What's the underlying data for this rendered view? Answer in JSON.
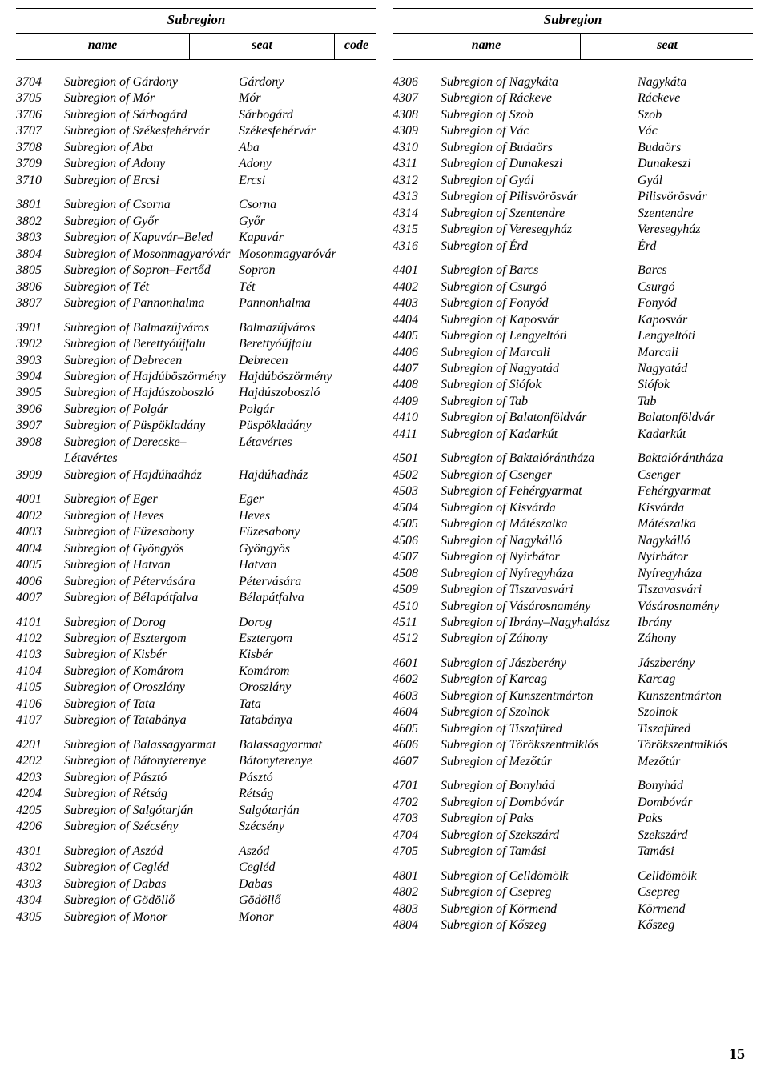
{
  "headers": {
    "subregion": "Subregion",
    "name": "name",
    "seat": "seat",
    "code": "code"
  },
  "page_number": "15",
  "left_groups": [
    [
      {
        "code": "3704",
        "name": "Subregion of Gárdony",
        "seat": "Gárdony"
      },
      {
        "code": "3705",
        "name": "Subregion of Mór",
        "seat": "Mór"
      },
      {
        "code": "3706",
        "name": "Subregion of Sárbogárd",
        "seat": "Sárbogárd"
      },
      {
        "code": "3707",
        "name": "Subregion of Székesfehérvár",
        "seat": "Székesfehérvár"
      },
      {
        "code": "3708",
        "name": "Subregion of Aba",
        "seat": "Aba"
      },
      {
        "code": "3709",
        "name": "Subregion of Adony",
        "seat": "Adony"
      },
      {
        "code": "3710",
        "name": "Subregion of Ercsi",
        "seat": "Ercsi"
      }
    ],
    [
      {
        "code": "3801",
        "name": "Subregion of Csorna",
        "seat": "Csorna"
      },
      {
        "code": "3802",
        "name": "Subregion of Győr",
        "seat": "Győr"
      },
      {
        "code": "3803",
        "name": "Subregion of Kapuvár–Beled",
        "seat": "Kapuvár"
      },
      {
        "code": "3804",
        "name": "Subregion of Mosonmagyaróvár",
        "seat": "Mosonmagyaróvár"
      },
      {
        "code": "3805",
        "name": "Subregion of Sopron–Fertőd",
        "seat": "Sopron"
      },
      {
        "code": "3806",
        "name": "Subregion of Tét",
        "seat": "Tét"
      },
      {
        "code": "3807",
        "name": "Subregion of Pannonhalma",
        "seat": "Pannonhalma"
      }
    ],
    [
      {
        "code": "3901",
        "name": "Subregion of Balmazújváros",
        "seat": "Balmazújváros"
      },
      {
        "code": "3902",
        "name": "Subregion of Berettyóújfalu",
        "seat": "Berettyóújfalu"
      },
      {
        "code": "3903",
        "name": "Subregion of Debrecen",
        "seat": "Debrecen"
      },
      {
        "code": "3904",
        "name": "Subregion of Hajdúböszörmény",
        "seat": "Hajdúböszörmény"
      },
      {
        "code": "3905",
        "name": "Subregion of Hajdúszoboszló",
        "seat": "Hajdúszoboszló"
      },
      {
        "code": "3906",
        "name": "Subregion of Polgár",
        "seat": "Polgár"
      },
      {
        "code": "3907",
        "name": "Subregion of Püspökladány",
        "seat": "Püspökladány"
      },
      {
        "code": "3908",
        "name": "Subregion of Derecske–Létavértes",
        "seat": "Létavértes"
      },
      {
        "code": "3909",
        "name": "Subregion of Hajdúhadház",
        "seat": "Hajdúhadház"
      }
    ],
    [
      {
        "code": "4001",
        "name": "Subregion of Eger",
        "seat": "Eger"
      },
      {
        "code": "4002",
        "name": "Subregion of Heves",
        "seat": "Heves"
      },
      {
        "code": "4003",
        "name": "Subregion of Füzesabony",
        "seat": "Füzesabony"
      },
      {
        "code": "4004",
        "name": "Subregion of Gyöngyös",
        "seat": "Gyöngyös"
      },
      {
        "code": "4005",
        "name": "Subregion of Hatvan",
        "seat": "Hatvan"
      },
      {
        "code": "4006",
        "name": "Subregion of Pétervására",
        "seat": "Pétervására"
      },
      {
        "code": "4007",
        "name": "Subregion of Bélapátfalva",
        "seat": "Bélapátfalva"
      }
    ],
    [
      {
        "code": "4101",
        "name": "Subregion of Dorog",
        "seat": "Dorog"
      },
      {
        "code": "4102",
        "name": "Subregion of Esztergom",
        "seat": "Esztergom"
      },
      {
        "code": "4103",
        "name": "Subregion of Kisbér",
        "seat": "Kisbér"
      },
      {
        "code": "4104",
        "name": "Subregion of Komárom",
        "seat": "Komárom"
      },
      {
        "code": "4105",
        "name": "Subregion of Oroszlány",
        "seat": "Oroszlány"
      },
      {
        "code": "4106",
        "name": "Subregion of Tata",
        "seat": "Tata"
      },
      {
        "code": "4107",
        "name": "Subregion of Tatabánya",
        "seat": "Tatabánya"
      }
    ],
    [
      {
        "code": "4201",
        "name": "Subregion of Balassagyarmat",
        "seat": "Balassagyarmat"
      },
      {
        "code": "4202",
        "name": "Subregion of Bátonyterenye",
        "seat": "Bátonyterenye"
      },
      {
        "code": "4203",
        "name": "Subregion of Pásztó",
        "seat": "Pásztó"
      },
      {
        "code": "4204",
        "name": "Subregion of Rétság",
        "seat": "Rétság"
      },
      {
        "code": "4205",
        "name": "Subregion of Salgótarján",
        "seat": "Salgótarján"
      },
      {
        "code": "4206",
        "name": "Subregion of Szécsény",
        "seat": "Szécsény"
      }
    ],
    [
      {
        "code": "4301",
        "name": "Subregion of Aszód",
        "seat": "Aszód"
      },
      {
        "code": "4302",
        "name": "Subregion of Cegléd",
        "seat": "Cegléd"
      },
      {
        "code": "4303",
        "name": "Subregion of Dabas",
        "seat": "Dabas"
      },
      {
        "code": "4304",
        "name": "Subregion of Gödöllő",
        "seat": "Gödöllő"
      },
      {
        "code": "4305",
        "name": "Subregion of Monor",
        "seat": "Monor"
      }
    ]
  ],
  "right_groups": [
    [
      {
        "code": "4306",
        "name": "Subregion of Nagykáta",
        "seat": "Nagykáta"
      },
      {
        "code": "4307",
        "name": "Subregion of Ráckeve",
        "seat": "Ráckeve"
      },
      {
        "code": "4308",
        "name": "Subregion of Szob",
        "seat": "Szob"
      },
      {
        "code": "4309",
        "name": "Subregion of Vác",
        "seat": "Vác"
      },
      {
        "code": "4310",
        "name": "Subregion of Budaörs",
        "seat": "Budaörs"
      },
      {
        "code": "4311",
        "name": "Subregion of Dunakeszi",
        "seat": "Dunakeszi"
      },
      {
        "code": "4312",
        "name": "Subregion of Gyál",
        "seat": "Gyál"
      },
      {
        "code": "4313",
        "name": "Subregion of Pilisvörösvár",
        "seat": "Pilisvörösvár"
      },
      {
        "code": "4314",
        "name": "Subregion of Szentendre",
        "seat": "Szentendre"
      },
      {
        "code": "4315",
        "name": "Subregion of Veresegyház",
        "seat": "Veresegyház"
      },
      {
        "code": "4316",
        "name": "Subregion of Érd",
        "seat": "Érd"
      }
    ],
    [
      {
        "code": "4401",
        "name": "Subregion of Barcs",
        "seat": "Barcs"
      },
      {
        "code": "4402",
        "name": "Subregion of Csurgó",
        "seat": "Csurgó"
      },
      {
        "code": "4403",
        "name": "Subregion of Fonyód",
        "seat": "Fonyód"
      },
      {
        "code": "4404",
        "name": "Subregion of Kaposvár",
        "seat": "Kaposvár"
      },
      {
        "code": "4405",
        "name": "Subregion of Lengyeltóti",
        "seat": "Lengyeltóti"
      },
      {
        "code": "4406",
        "name": "Subregion of Marcali",
        "seat": "Marcali"
      },
      {
        "code": "4407",
        "name": "Subregion of Nagyatád",
        "seat": "Nagyatád"
      },
      {
        "code": "4408",
        "name": "Subregion of Siófok",
        "seat": "Siófok"
      },
      {
        "code": "4409",
        "name": "Subregion of Tab",
        "seat": "Tab"
      },
      {
        "code": "4410",
        "name": "Subregion of Balatonföldvár",
        "seat": "Balatonföldvár"
      },
      {
        "code": "4411",
        "name": "Subregion of Kadarkút",
        "seat": "Kadarkút"
      }
    ],
    [
      {
        "code": "4501",
        "name": "Subregion of Baktalórántháza",
        "seat": "Baktalórántháza"
      },
      {
        "code": "4502",
        "name": "Subregion of Csenger",
        "seat": "Csenger"
      },
      {
        "code": "4503",
        "name": "Subregion of Fehérgyarmat",
        "seat": "Fehérgyarmat"
      },
      {
        "code": "4504",
        "name": "Subregion of Kisvárda",
        "seat": "Kisvárda"
      },
      {
        "code": "4505",
        "name": "Subregion of Mátészalka",
        "seat": "Mátészalka"
      },
      {
        "code": "4506",
        "name": "Subregion of Nagykálló",
        "seat": "Nagykálló"
      },
      {
        "code": "4507",
        "name": "Subregion of Nyírbátor",
        "seat": "Nyírbátor"
      },
      {
        "code": "4508",
        "name": "Subregion of Nyíregyháza",
        "seat": "Nyíregyháza"
      },
      {
        "code": "4509",
        "name": "Subregion of Tiszavasvári",
        "seat": "Tiszavasvári"
      },
      {
        "code": "4510",
        "name": "Subregion of Vásárosnamény",
        "seat": "Vásárosnamény"
      },
      {
        "code": "4511",
        "name": "Subregion of Ibrány–Nagyhalász",
        "seat": "Ibrány"
      },
      {
        "code": "4512",
        "name": "Subregion of Záhony",
        "seat": "Záhony"
      }
    ],
    [
      {
        "code": "4601",
        "name": "Subregion of Jászberény",
        "seat": "Jászberény"
      },
      {
        "code": "4602",
        "name": "Subregion of Karcag",
        "seat": "Karcag"
      },
      {
        "code": "4603",
        "name": "Subregion of Kunszentmárton",
        "seat": "Kunszentmárton"
      },
      {
        "code": "4604",
        "name": "Subregion of Szolnok",
        "seat": "Szolnok"
      },
      {
        "code": "4605",
        "name": "Subregion of Tiszafüred",
        "seat": "Tiszafüred"
      },
      {
        "code": "4606",
        "name": "Subregion of Törökszentmiklós",
        "seat": "Törökszentmiklós"
      },
      {
        "code": "4607",
        "name": "Subregion of Mezőtúr",
        "seat": "Mezőtúr"
      }
    ],
    [
      {
        "code": "4701",
        "name": "Subregion of Bonyhád",
        "seat": "Bonyhád"
      },
      {
        "code": "4702",
        "name": "Subregion of Dombóvár",
        "seat": "Dombóvár"
      },
      {
        "code": "4703",
        "name": "Subregion of Paks",
        "seat": "Paks"
      },
      {
        "code": "4704",
        "name": "Subregion of Szekszárd",
        "seat": "Szekszárd"
      },
      {
        "code": "4705",
        "name": "Subregion of Tamási",
        "seat": "Tamási"
      }
    ],
    [
      {
        "code": "4801",
        "name": "Subregion of Celldömölk",
        "seat": "Celldömölk"
      },
      {
        "code": "4802",
        "name": "Subregion of Csepreg",
        "seat": "Csepreg"
      },
      {
        "code": "4803",
        "name": "Subregion of Körmend",
        "seat": "Körmend"
      },
      {
        "code": "4804",
        "name": "Subregion of Kőszeg",
        "seat": "Kőszeg"
      }
    ]
  ]
}
